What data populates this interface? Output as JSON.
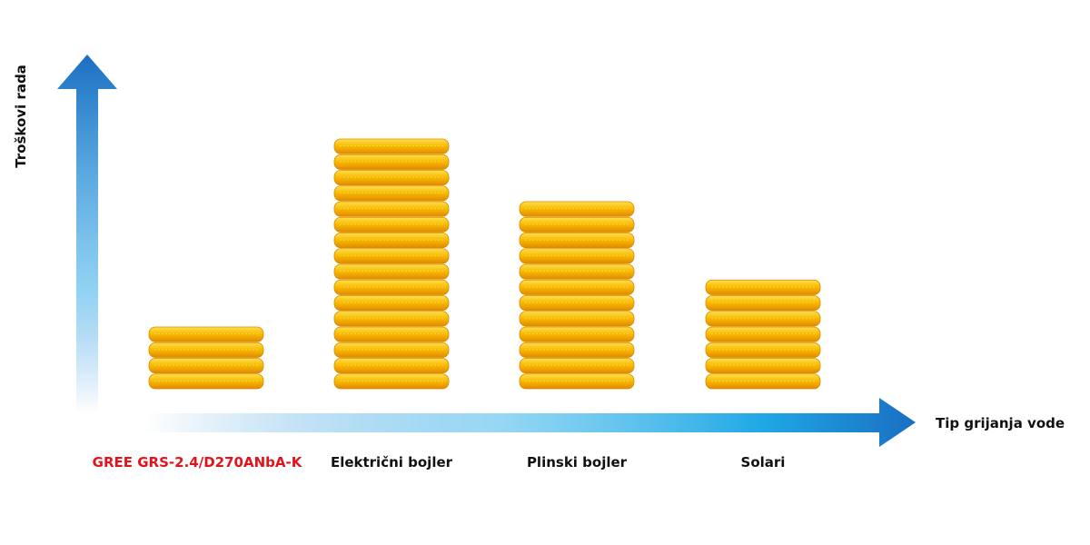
{
  "chart_data": {
    "type": "bar",
    "y_label": "Troškovi rada",
    "x_label": "Tip grijanja vode",
    "categories": [
      "GREE GRS-2.4/D270ANbA-K",
      "Električni bojler",
      "Plinski bojler",
      "Solari"
    ],
    "category_colors": [
      "#e3131b",
      "#111111",
      "#111111",
      "#111111"
    ],
    "values": [
      4,
      16,
      12,
      7
    ],
    "color": "#f5b400"
  }
}
